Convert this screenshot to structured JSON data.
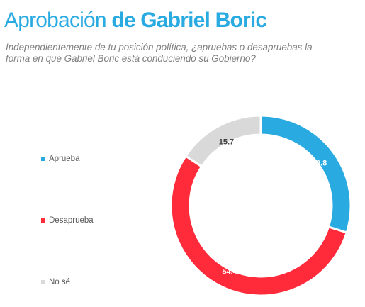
{
  "header": {
    "title_light": "Aprobación",
    "title_bold": "de Gabriel Boric",
    "subtitle": "Independientemente de tu posición política, ¿apruebas o desapruebas la forma en que Gabriel Boric está conduciendo su Gobierno?"
  },
  "chart_data": {
    "type": "pie",
    "style": "donut",
    "title": "Aprobación de Gabriel Boric",
    "categories": [
      "Aprueba",
      "Desaprueba",
      "No sé"
    ],
    "values": [
      29.8,
      54.4,
      15.7
    ],
    "colors": [
      "#29abe2",
      "#ff2a3a",
      "#d9d9d9"
    ],
    "label_colors": [
      "#ffffff",
      "#ffffff",
      "#404040"
    ],
    "value_labels": [
      "29.8",
      "54.4",
      "15.7"
    ],
    "legend": "left",
    "start_angle": "top, clockwise"
  }
}
